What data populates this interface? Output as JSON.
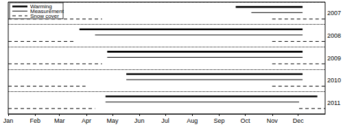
{
  "chart_data": {
    "type": "timeline",
    "categories": [
      "2007",
      "2008",
      "2009",
      "2010",
      "2011"
    ],
    "xlim": [
      0,
      365
    ],
    "xticks": [
      {
        "value": 0,
        "label": "Jan"
      },
      {
        "value": 31,
        "label": "Feb"
      },
      {
        "value": 59,
        "label": "Mar"
      },
      {
        "value": 90,
        "label": "Apr"
      },
      {
        "value": 120,
        "label": "May"
      },
      {
        "value": 151,
        "label": "Jun"
      },
      {
        "value": 181,
        "label": "Jul"
      },
      {
        "value": 212,
        "label": "Aug"
      },
      {
        "value": 243,
        "label": "Sep"
      },
      {
        "value": 273,
        "label": "Oct"
      },
      {
        "value": 304,
        "label": "Nov"
      },
      {
        "value": 334,
        "label": "Dec"
      }
    ],
    "grid": true,
    "legend": "upper left",
    "series": [
      {
        "name": "Warming",
        "color": "#000000",
        "line_style": "thick",
        "values": [
          [
            [
              262,
              339
            ]
          ],
          [
            [
              82,
              339
            ]
          ],
          [
            [
              114,
              339
            ]
          ],
          [
            [
              136,
              339
            ]
          ],
          [
            [
              112,
              356
            ]
          ]
        ]
      },
      {
        "name": "Measurement",
        "color": "#000000",
        "line_style": "solid",
        "values": [
          [
            [
              280,
              339
            ]
          ],
          [
            [
              100,
              339
            ]
          ],
          [
            [
              114,
              339
            ]
          ],
          [
            [
              136,
              339
            ]
          ],
          [
            [
              112,
              335
            ]
          ]
        ]
      },
      {
        "name": "Snow cover",
        "color": "#000000",
        "line_style": "dashed",
        "values": [
          [
            [
              0,
              108
            ],
            [
              304,
              365
            ]
          ],
          [
            [
              0,
              77
            ],
            [
              304,
              365
            ]
          ],
          [
            [
              0,
              108
            ],
            [
              304,
              365
            ]
          ],
          [
            [
              0,
              89
            ],
            [
              304,
              365
            ]
          ],
          [
            [
              0,
              100
            ],
            [
              335,
              365
            ]
          ]
        ]
      }
    ]
  }
}
